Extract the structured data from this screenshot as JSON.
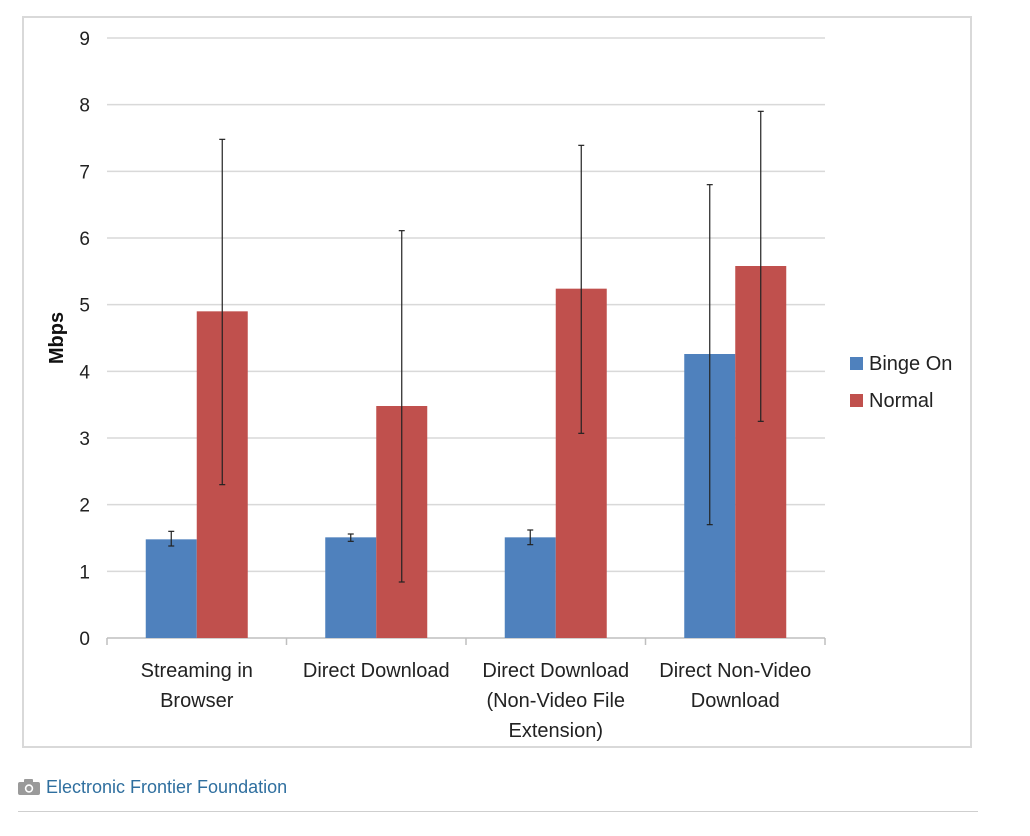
{
  "chart_data": {
    "type": "bar",
    "title": "",
    "xlabel": "",
    "ylabel": "Mbps",
    "ylim": [
      0,
      9
    ],
    "yticks": [
      0,
      1,
      2,
      3,
      4,
      5,
      6,
      7,
      8,
      9
    ],
    "grid": true,
    "legend_position": "right",
    "categories": [
      [
        "Streaming in",
        "Browser"
      ],
      [
        "Direct Download"
      ],
      [
        "Direct Download",
        "(Non-Video File",
        "Extension)"
      ],
      [
        "Direct Non-Video",
        "Download"
      ]
    ],
    "series": [
      {
        "name": "Binge On",
        "color": "#4f81bd",
        "values": [
          1.48,
          1.51,
          1.51,
          4.26
        ],
        "error_low": [
          1.38,
          1.45,
          1.4,
          1.7
        ],
        "error_high": [
          1.6,
          1.56,
          1.62,
          6.8
        ]
      },
      {
        "name": "Normal",
        "color": "#c0504d",
        "values": [
          4.9,
          3.48,
          5.24,
          5.58
        ],
        "error_low": [
          2.3,
          0.84,
          3.07,
          3.25
        ],
        "error_high": [
          7.48,
          6.11,
          7.39,
          7.9
        ]
      }
    ]
  },
  "credit": {
    "icon": "camera-icon",
    "text": "Electronic Frontier Foundation",
    "link_color": "#2f6f9f"
  }
}
